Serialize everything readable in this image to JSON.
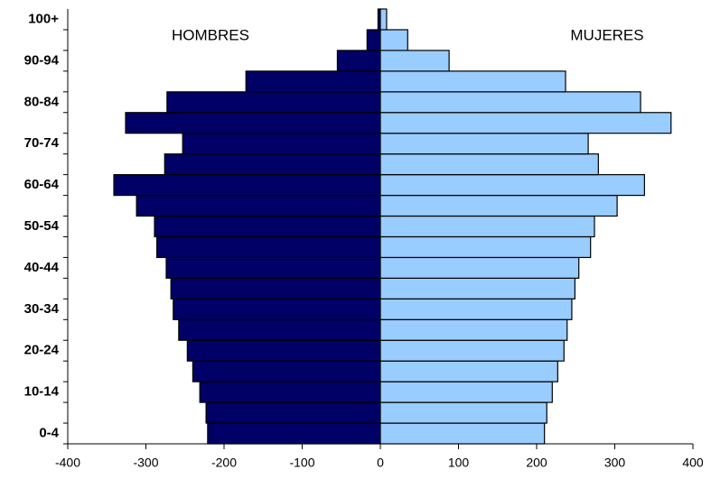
{
  "chart_data": {
    "type": "pyramid",
    "categories": [
      "0-4",
      null,
      "10-14",
      null,
      "20-24",
      null,
      "30-34",
      null,
      "40-44",
      null,
      "50-54",
      null,
      "60-64",
      null,
      "70-74",
      null,
      "80-84",
      null,
      "90-94",
      null,
      "100+"
    ],
    "series": [
      {
        "name": "HOMBRES",
        "color": "#000066",
        "values": [
          -221,
          -223,
          -231,
          -240,
          -247,
          -258,
          -265,
          -268,
          -274,
          -286,
          -289,
          -312,
          -341,
          -276,
          -253,
          -326,
          -273,
          -172,
          -55,
          -17,
          -3
        ]
      },
      {
        "name": "MUJERES",
        "color": "#99ccff",
        "values": [
          210,
          213,
          220,
          227,
          235,
          239,
          245,
          249,
          254,
          269,
          274,
          303,
          338,
          279,
          266,
          372,
          333,
          237,
          88,
          35,
          8
        ]
      }
    ],
    "xlim": [
      -400,
      400
    ],
    "xticks": [
      -400,
      -300,
      -200,
      -100,
      0,
      100,
      200,
      300,
      400
    ]
  }
}
